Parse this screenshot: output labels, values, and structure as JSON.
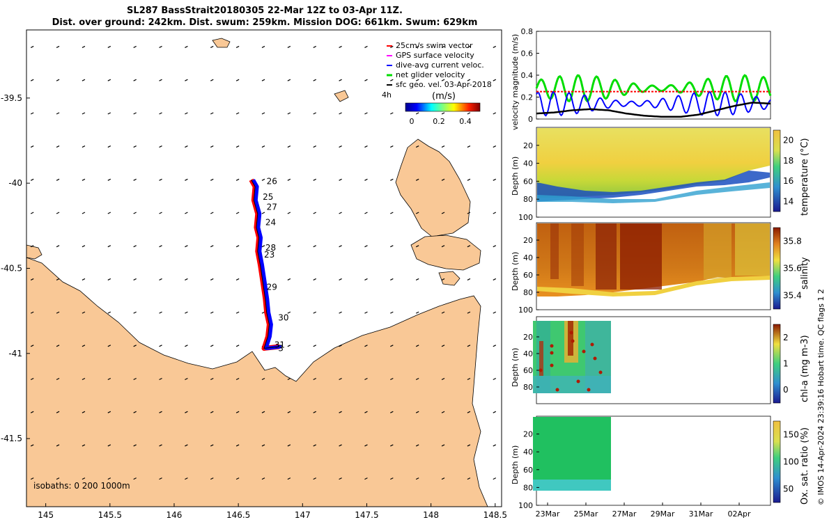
{
  "header": {
    "title_line1": "SL287 BassStrait20180305 22-Mar 12Z to 03-Apr 11Z.",
    "title_line2": "Dist. over ground: 242km. Dist. swum: 259km. Mission DOG: 661km. Swum: 629km"
  },
  "footer_note": "© IMOS 14-Apr-2024 23:39:16 Hobart time. QC flags 1  2",
  "colors": {
    "land": "#f9c896",
    "swim_vector": "#ff0000",
    "gps_surface": "#ff00ff",
    "dive_avg": "#0000ff",
    "net_glider": "#00dd00",
    "sfc_geo": "#000000"
  },
  "chart_data": [
    {
      "type": "scatter",
      "name": "map",
      "x_ticks": [
        "145",
        "145.5",
        "146",
        "146.5",
        "147",
        "147.5",
        "148",
        "148.5"
      ],
      "y_ticks": [
        "-39.5",
        "-40",
        "-40.5",
        "-41",
        "-41.5"
      ],
      "xlim": [
        144.85,
        148.55
      ],
      "ylim": [
        -41.9,
        -39.1
      ],
      "legend": [
        "25cm/s swim vector",
        "GPS surface velocity",
        "dive-avg current veloc.",
        "net glider velocity",
        "sfc geo. vel. 03-Apr-2018"
      ],
      "legend_position": "top-right",
      "colorbar": {
        "title": "(m/s)",
        "ticks": [
          "0",
          "0.2",
          "0.4"
        ],
        "range": [
          0,
          0.5
        ]
      },
      "duration_label": "4h",
      "isobaths_label": "isobaths: 0   200  1000m",
      "day_labels": [
        {
          "text": "26",
          "lon": 146.72,
          "lat": -39.99
        },
        {
          "text": "25",
          "lon": 146.69,
          "lat": -40.08
        },
        {
          "text": "27",
          "lon": 146.72,
          "lat": -40.14
        },
        {
          "text": "24",
          "lon": 146.71,
          "lat": -40.23
        },
        {
          "text": "28",
          "lon": 146.71,
          "lat": -40.38
        },
        {
          "text": "23",
          "lon": 146.7,
          "lat": -40.42
        },
        {
          "text": "29",
          "lon": 146.72,
          "lat": -40.61
        },
        {
          "text": "30",
          "lon": 146.81,
          "lat": -40.79
        },
        {
          "text": "31",
          "lon": 146.78,
          "lat": -40.95
        },
        {
          "text": "3",
          "lon": 146.81,
          "lat": -40.97
        }
      ],
      "track": [
        [
          146.6,
          -39.98
        ],
        [
          146.63,
          -40.02
        ],
        [
          146.62,
          -40.1
        ],
        [
          146.65,
          -40.18
        ],
        [
          146.64,
          -40.26
        ],
        [
          146.66,
          -40.32
        ],
        [
          146.65,
          -40.4
        ],
        [
          146.67,
          -40.48
        ],
        [
          146.69,
          -40.58
        ],
        [
          146.71,
          -40.68
        ],
        [
          146.72,
          -40.76
        ],
        [
          146.74,
          -40.83
        ],
        [
          146.73,
          -40.9
        ],
        [
          146.7,
          -40.97
        ],
        [
          146.82,
          -40.96
        ]
      ]
    },
    {
      "type": "line",
      "name": "velocity-magnitude",
      "ylabel": "velocity magnitude (m/s)",
      "ylim": [
        0,
        0.8
      ],
      "y_ticks": [
        "0",
        "0.2",
        "0.4",
        "0.6",
        "0.8"
      ],
      "series": [
        {
          "color": "#00dd00",
          "mean": 0.28,
          "amp": 0.12,
          "period": 0.95
        },
        {
          "color": "#0000ff",
          "mean": 0.14,
          "amp": 0.11,
          "period": 0.8
        },
        {
          "color": "#ff0000",
          "mean": 0.25,
          "amp": 0.0,
          "period": 1.0
        },
        {
          "color": "#000000",
          "values": [
            0.05,
            0.06,
            0.08,
            0.09,
            0.08,
            0.05,
            0.03,
            0.02,
            0.02,
            0.04,
            0.08,
            0.12,
            0.15,
            0.14
          ]
        }
      ]
    },
    {
      "type": "heatmap",
      "name": "temperature",
      "ylabel": "Depth (m)",
      "colorbar_label": "temperature (°C)",
      "colorbar_ticks": [
        "14",
        "16",
        "18",
        "20"
      ],
      "y_ticks": [
        "20",
        "40",
        "60",
        "80",
        "100"
      ]
    },
    {
      "type": "heatmap",
      "name": "salinity",
      "ylabel": "Depth (m)",
      "colorbar_label": "salinity",
      "colorbar_ticks": [
        "35.4",
        "35.6",
        "35.8"
      ],
      "y_ticks": [
        "20",
        "40",
        "60",
        "80",
        "100"
      ]
    },
    {
      "type": "heatmap",
      "name": "chl-a",
      "ylabel": "Depth (m)",
      "colorbar_label": "chl-a (mg m-3)",
      "colorbar_ticks": [
        "0",
        "1",
        "2"
      ],
      "y_ticks": [
        "20",
        "40",
        "60",
        "80"
      ]
    },
    {
      "type": "heatmap",
      "name": "oxygen",
      "ylabel": "Depth (m)",
      "colorbar_label": "Ox. sat. ratio (%)",
      "colorbar_ticks": [
        "50",
        "100",
        "150"
      ],
      "y_ticks": [
        "20",
        "40",
        "60",
        "80",
        "100"
      ],
      "x_ticks": [
        "23Mar",
        "25Mar",
        "27Mar",
        "29Mar",
        "31Mar",
        "02Apr"
      ]
    }
  ]
}
